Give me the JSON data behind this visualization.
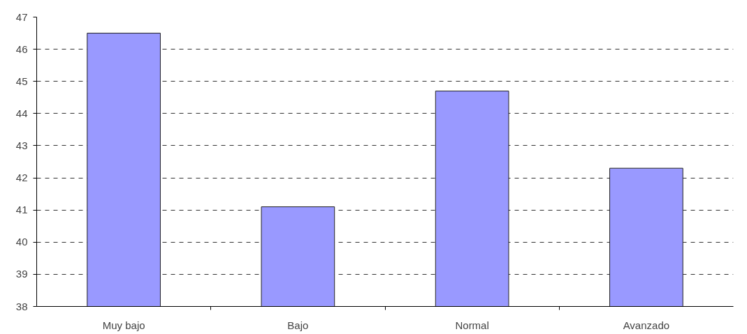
{
  "chart_data": {
    "type": "bar",
    "categories": [
      "Muy bajo",
      "Bajo",
      "Normal",
      "Avanzado"
    ],
    "values": [
      46.5,
      41.1,
      44.7,
      42.3
    ],
    "color": "#9999ff",
    "ylim": [
      38,
      47
    ],
    "yticks": [
      38,
      39,
      40,
      41,
      42,
      43,
      44,
      45,
      46,
      47
    ],
    "grid": "y"
  }
}
